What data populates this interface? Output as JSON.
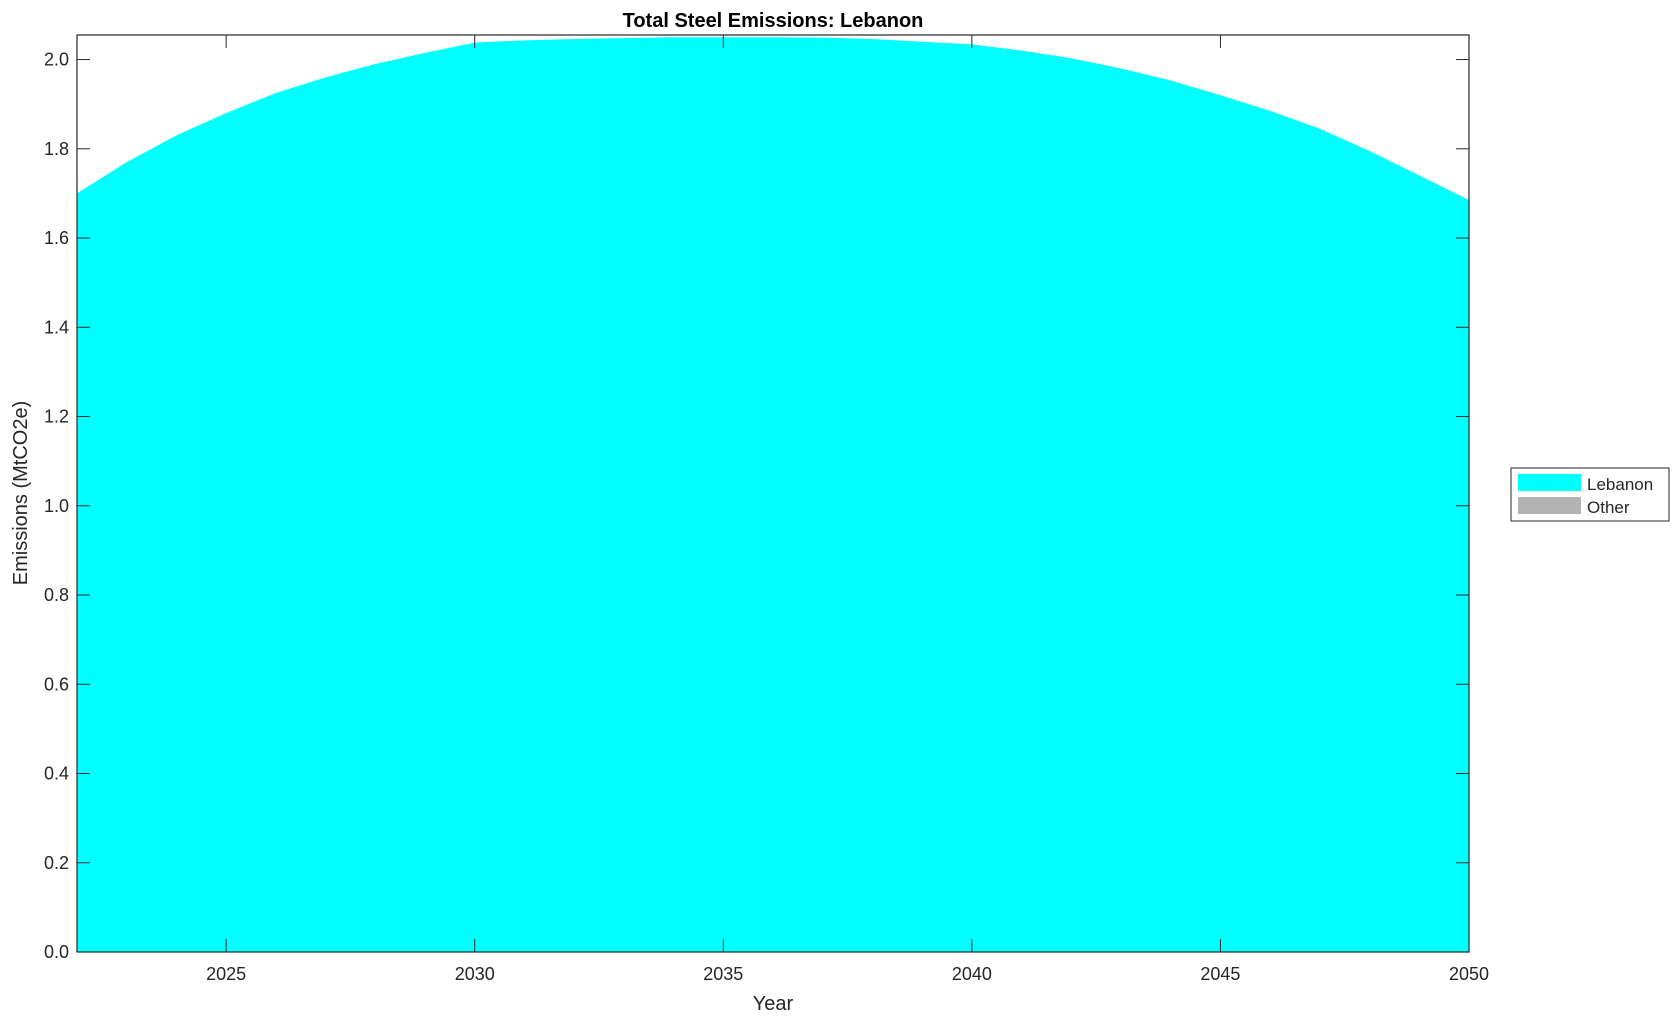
{
  "chart_data": {
    "type": "area",
    "stacked": true,
    "title": "Total Steel Emissions: Lebanon",
    "xlabel": "Year",
    "ylabel": "Emissions (MtCO2e)",
    "xlim": [
      2022,
      2050
    ],
    "ylim": [
      0,
      2.055
    ],
    "xticks": [
      2025,
      2030,
      2035,
      2040,
      2045,
      2050
    ],
    "xtick_labels": [
      "2025",
      "2030",
      "2035",
      "2040",
      "2045",
      "2050"
    ],
    "yticks": [
      0,
      0.2,
      0.4,
      0.6,
      0.8,
      1.0,
      1.2,
      1.4,
      1.6,
      1.8,
      2.0
    ],
    "ytick_labels": [
      "0.0",
      "0.2",
      "0.4",
      "0.6",
      "0.8",
      "1.0",
      "1.2",
      "1.4",
      "1.6",
      "1.8",
      "2.0"
    ],
    "grid": false,
    "legend_position": "outside-right",
    "x": [
      2022,
      2023,
      2024,
      2025,
      2026,
      2027,
      2028,
      2029,
      2030,
      2031,
      2032,
      2033,
      2034,
      2035,
      2036,
      2037,
      2038,
      2039,
      2040,
      2041,
      2042,
      2043,
      2044,
      2045,
      2046,
      2047,
      2048,
      2049,
      2050
    ],
    "series": [
      {
        "name": "Lebanon",
        "color": "#00FFFF",
        "values": [
          1.7,
          1.77,
          1.83,
          1.88,
          1.925,
          1.96,
          1.99,
          2.015,
          2.038,
          2.043,
          2.046,
          2.048,
          2.05,
          2.05,
          2.05,
          2.049,
          2.046,
          2.04,
          2.034,
          2.02,
          2.003,
          1.98,
          1.953,
          1.92,
          1.885,
          1.845,
          1.795,
          1.74,
          1.685
        ]
      },
      {
        "name": "Other",
        "color": "#B3B3B3",
        "values": [
          0,
          0,
          0,
          0,
          0,
          0,
          0,
          0,
          0,
          0,
          0,
          0,
          0,
          0,
          0,
          0,
          0,
          0,
          0,
          0,
          0,
          0,
          0,
          0,
          0,
          0,
          0,
          0,
          0
        ]
      }
    ]
  }
}
